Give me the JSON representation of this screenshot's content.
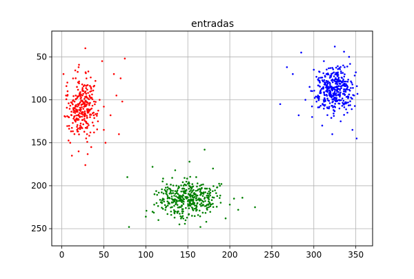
{
  "chart_data": {
    "type": "scatter",
    "title": "entradas",
    "xlabel": "",
    "ylabel": "",
    "xlim": [
      -12,
      370
    ],
    "ylim": [
      270,
      20
    ],
    "y_inverted": true,
    "grid": true,
    "legend": "none",
    "x_ticks": [
      0,
      50,
      100,
      150,
      200,
      250,
      300,
      350
    ],
    "y_ticks": [
      50,
      100,
      150,
      200,
      250
    ],
    "x_tick_labels": [
      "0",
      "50",
      "100",
      "150",
      "200",
      "250",
      "300",
      "350"
    ],
    "y_tick_labels": [
      "50",
      "100",
      "150",
      "200",
      "250"
    ],
    "clusters": [
      {
        "color": "#ff0000",
        "count": 300,
        "x_range": [
          0,
          78
        ],
        "y_range": [
          38,
          178
        ],
        "x_center": 25,
        "y_center": 108,
        "representative_points": [
          [
            2,
            70
          ],
          [
            5,
            95
          ],
          [
            8,
            120
          ],
          [
            10,
            150
          ],
          [
            12,
            165
          ],
          [
            15,
            110
          ],
          [
            18,
            85
          ],
          [
            20,
            62
          ],
          [
            22,
            130
          ],
          [
            25,
            105
          ],
          [
            28,
            40
          ],
          [
            30,
            140
          ],
          [
            33,
            95
          ],
          [
            35,
            155
          ],
          [
            38,
            118
          ],
          [
            40,
            78
          ],
          [
            43,
            125
          ],
          [
            45,
            100
          ],
          [
            48,
            55
          ],
          [
            50,
            135
          ],
          [
            52,
            150
          ],
          [
            58,
            118
          ],
          [
            62,
            70
          ],
          [
            65,
            95
          ],
          [
            68,
            140
          ],
          [
            70,
            75
          ],
          [
            72,
            102
          ],
          [
            75,
            52
          ],
          [
            28,
            176
          ],
          [
            20,
            160
          ]
        ]
      },
      {
        "color": "#008000",
        "count": 400,
        "x_range": [
          75,
          230
        ],
        "y_range": [
          155,
          250
        ],
        "x_center": 150,
        "y_center": 215,
        "representative_points": [
          [
            78,
            190
          ],
          [
            80,
            248
          ],
          [
            100,
            236
          ],
          [
            108,
            178
          ],
          [
            110,
            222
          ],
          [
            115,
            240
          ],
          [
            120,
            195
          ],
          [
            125,
            210
          ],
          [
            130,
            230
          ],
          [
            135,
            182
          ],
          [
            140,
            245
          ],
          [
            145,
            200
          ],
          [
            150,
            218
          ],
          [
            152,
            172
          ],
          [
            155,
            235
          ],
          [
            160,
            190
          ],
          [
            165,
            205
          ],
          [
            170,
            158
          ],
          [
            172,
            242
          ],
          [
            175,
            225
          ],
          [
            180,
            180
          ],
          [
            185,
            212
          ],
          [
            190,
            198
          ],
          [
            195,
            238
          ],
          [
            200,
            222
          ],
          [
            205,
            215
          ],
          [
            210,
            228
          ],
          [
            215,
            214
          ],
          [
            230,
            225
          ],
          [
            165,
            248
          ]
        ]
      },
      {
        "color": "#0000ff",
        "count": 400,
        "x_range": [
          258,
          352
        ],
        "y_range": [
          35,
          145
        ],
        "x_center": 325,
        "y_center": 88,
        "representative_points": [
          [
            260,
            105
          ],
          [
            268,
            62
          ],
          [
            275,
            70
          ],
          [
            282,
            118
          ],
          [
            285,
            45
          ],
          [
            290,
            100
          ],
          [
            295,
            85
          ],
          [
            298,
            120
          ],
          [
            300,
            65
          ],
          [
            305,
            95
          ],
          [
            310,
            130
          ],
          [
            312,
            55
          ],
          [
            315,
            78
          ],
          [
            318,
            110
          ],
          [
            320,
            92
          ],
          [
            322,
            140
          ],
          [
            325,
            38
          ],
          [
            328,
            72
          ],
          [
            330,
            100
          ],
          [
            332,
            125
          ],
          [
            335,
            60
          ],
          [
            338,
            88
          ],
          [
            340,
            115
          ],
          [
            342,
            50
          ],
          [
            345,
            80
          ],
          [
            346,
            135
          ],
          [
            348,
            95
          ],
          [
            350,
            68
          ],
          [
            351,
            145
          ],
          [
            336,
            44
          ]
        ]
      }
    ]
  }
}
